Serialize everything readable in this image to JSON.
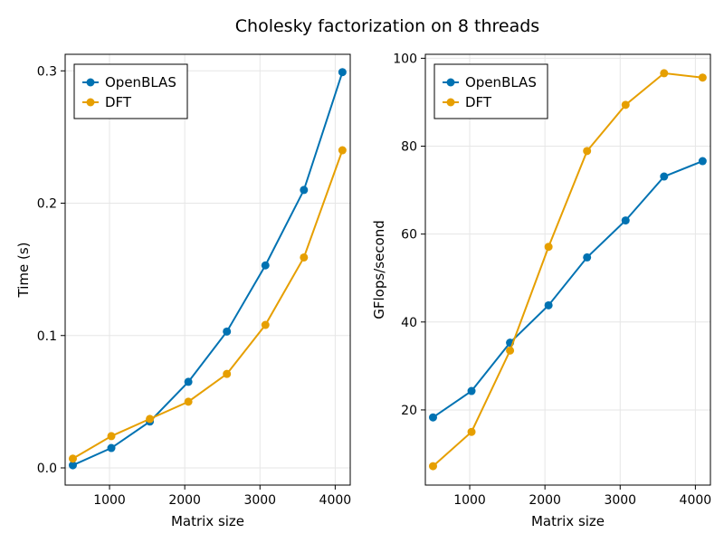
{
  "chart_data": {
    "title": "Cholesky factorization on 8 threads",
    "colors": {
      "OpenBLAS": "#0072b2",
      "DFT": "#e69f00"
    },
    "panels": [
      {
        "type": "line",
        "xlabel": "Matrix size",
        "ylabel": "Time (s)",
        "xlim": [
          410,
          4200
        ],
        "ylim": [
          -0.013,
          0.3125
        ],
        "xticks": [
          1000,
          2000,
          3000,
          4000
        ],
        "yticks": [
          0.0,
          0.1,
          0.2,
          0.3
        ],
        "ytick_labels": [
          "0.0",
          "0.1",
          "0.2",
          "0.3"
        ],
        "x": [
          512,
          1024,
          1536,
          2048,
          2560,
          3072,
          3584,
          4096
        ],
        "series": [
          {
            "name": "OpenBLAS",
            "values": [
              0.002,
              0.015,
              0.035,
              0.065,
              0.103,
              0.153,
              0.21,
              0.299
            ]
          },
          {
            "name": "DFT",
            "values": [
              0.007,
              0.024,
              0.037,
              0.05,
              0.071,
              0.108,
              0.159,
              0.24
            ]
          }
        ],
        "legend": "top-left"
      },
      {
        "type": "line",
        "xlabel": "Matrix size",
        "ylabel": "GFlops/second",
        "xlim": [
          410,
          4200
        ],
        "ylim": [
          2.9,
          100.9
        ],
        "xticks": [
          1000,
          2000,
          3000,
          4000
        ],
        "yticks": [
          20,
          40,
          60,
          80,
          100
        ],
        "ytick_labels": [
          "20",
          "40",
          "60",
          "80",
          "100"
        ],
        "x": [
          512,
          1024,
          1536,
          2048,
          2560,
          3072,
          3584,
          4096
        ],
        "series": [
          {
            "name": "OpenBLAS",
            "values": [
              18.3,
              24.3,
              35.3,
              43.8,
              54.7,
              63.1,
              73.1,
              76.6
            ]
          },
          {
            "name": "DFT",
            "values": [
              7.2,
              15.0,
              33.5,
              57.1,
              78.9,
              89.4,
              96.6,
              95.6
            ]
          }
        ],
        "legend": "top-left"
      }
    ]
  }
}
